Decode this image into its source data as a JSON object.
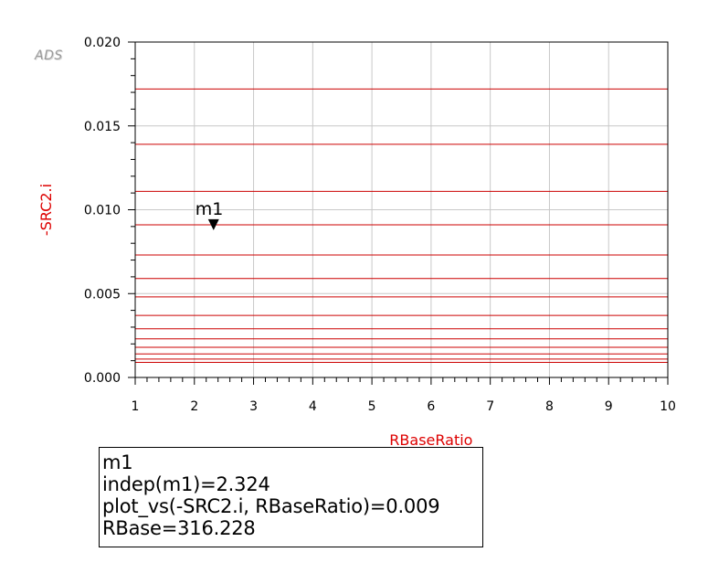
{
  "logo": {
    "text": "ADS"
  },
  "chart_data": {
    "type": "line",
    "xlabel": "RBaseRatio",
    "ylabel": "-SRC2.i",
    "xlim": [
      1,
      10
    ],
    "ylim": [
      0.0,
      0.02
    ],
    "x_ticks": [
      "1",
      "2",
      "3",
      "4",
      "5",
      "6",
      "7",
      "8",
      "9",
      "10"
    ],
    "y_ticks": [
      "0.000",
      "0.005",
      "0.010",
      "0.015",
      "0.020"
    ],
    "grid": true,
    "series_color": "#cc0000",
    "axis_label_color": "#dd0000",
    "series": [
      {
        "values": [
          0.0172,
          0.0172
        ]
      },
      {
        "values": [
          0.0139,
          0.0139
        ]
      },
      {
        "values": [
          0.0111,
          0.0111
        ]
      },
      {
        "values": [
          0.0091,
          0.0091
        ]
      },
      {
        "values": [
          0.0073,
          0.0073
        ]
      },
      {
        "values": [
          0.0059,
          0.0059
        ]
      },
      {
        "values": [
          0.0048,
          0.0048
        ]
      },
      {
        "values": [
          0.0037,
          0.0037
        ]
      },
      {
        "values": [
          0.0029,
          0.0029
        ]
      },
      {
        "values": [
          0.0023,
          0.0023
        ]
      },
      {
        "values": [
          0.0018,
          0.0018
        ]
      },
      {
        "values": [
          0.0014,
          0.0014
        ]
      },
      {
        "values": [
          0.0011,
          0.0011
        ]
      },
      {
        "values": [
          0.0009,
          0.0009
        ]
      }
    ],
    "marker": {
      "name": "m1",
      "x": 2.324,
      "y": 0.009
    }
  },
  "marker_readout": {
    "line1": "m1",
    "line2": "indep(m1)=2.324",
    "line3": "plot_vs(-SRC2.i, RBaseRatio)=0.009",
    "line4": "RBase=316.228"
  }
}
